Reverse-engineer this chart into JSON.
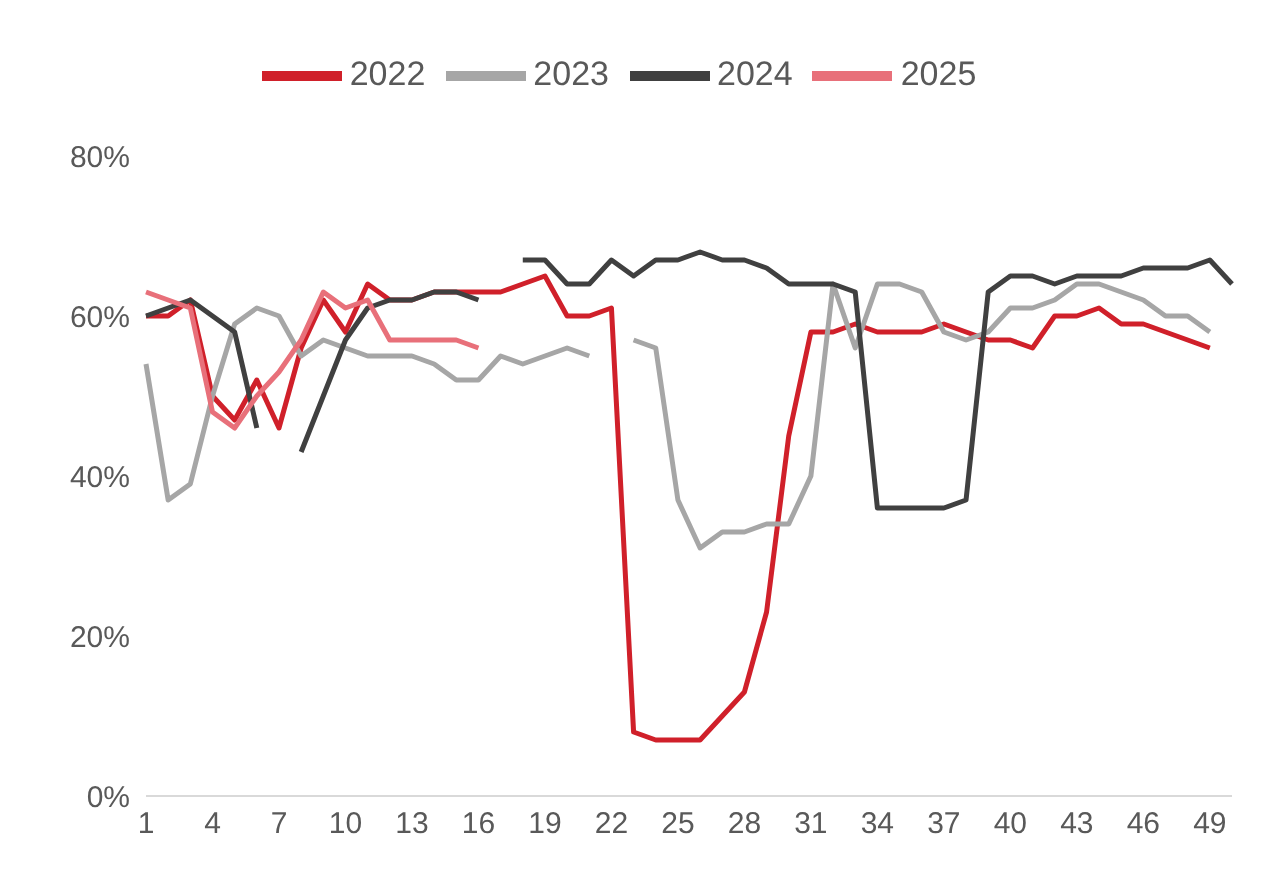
{
  "chart_data": {
    "type": "line",
    "categories": [
      "1",
      null,
      null,
      "4",
      null,
      null,
      "7",
      null,
      null,
      "10",
      null,
      null,
      "13",
      null,
      null,
      "16",
      null,
      null,
      "19",
      null,
      null,
      "22",
      null,
      null,
      "25",
      null,
      null,
      "28",
      null,
      null,
      "31",
      null,
      null,
      "34",
      null,
      null,
      "37",
      null,
      null,
      "40",
      null,
      null,
      "43",
      null,
      null,
      "46",
      null,
      null,
      "49",
      null
    ],
    "ylim": [
      0,
      80
    ],
    "yticks": [
      {
        "value": 0,
        "label": "0%"
      },
      {
        "value": 20,
        "label": "20%"
      },
      {
        "value": 40,
        "label": "40%"
      },
      {
        "value": 60,
        "label": "60%"
      },
      {
        "value": 80,
        "label": "80%"
      }
    ],
    "grid": false,
    "legend": "top",
    "marker": "none",
    "line_style": "solid",
    "series": [
      {
        "name": "2022",
        "color": "#d0202a",
        "values": [
          60,
          60,
          62,
          50,
          47,
          52,
          46,
          56,
          62,
          58,
          64,
          62,
          62,
          63,
          63,
          63,
          63,
          64,
          65,
          60,
          60,
          61,
          8,
          7,
          7,
          7,
          10,
          13,
          23,
          45,
          58,
          58,
          59,
          58,
          58,
          58,
          59,
          58,
          57,
          57,
          56,
          60,
          60,
          61,
          59,
          59,
          58,
          57,
          56,
          null
        ]
      },
      {
        "name": "2023",
        "color": "#a6a6a6",
        "values": [
          54,
          37,
          39,
          50,
          59,
          61,
          60,
          55,
          57,
          56,
          55,
          55,
          55,
          54,
          52,
          52,
          55,
          54,
          55,
          56,
          55,
          null,
          57,
          56,
          37,
          31,
          33,
          33,
          34,
          34,
          40,
          64,
          56,
          64,
          64,
          63,
          58,
          57,
          58,
          61,
          61,
          62,
          64,
          64,
          63,
          62,
          60,
          60,
          58,
          null
        ]
      },
      {
        "name": "2024",
        "color": "#404040",
        "values": [
          60,
          61,
          62,
          60,
          58,
          46,
          null,
          43,
          50,
          57,
          61,
          62,
          62,
          63,
          63,
          62,
          null,
          67,
          67,
          64,
          64,
          67,
          65,
          67,
          67,
          68,
          67,
          67,
          66,
          64,
          64,
          64,
          63,
          36,
          36,
          36,
          36,
          37,
          63,
          65,
          65,
          64,
          65,
          65,
          65,
          66,
          66,
          66,
          67,
          64
        ]
      },
      {
        "name": "2025",
        "color": "#e8707a",
        "values": [
          63,
          62,
          61,
          48,
          46,
          50,
          53,
          57,
          63,
          61,
          62,
          57,
          57,
          57,
          57,
          56,
          null,
          null,
          null,
          null,
          null,
          null,
          null,
          null,
          null,
          null,
          null,
          null,
          null,
          null,
          null,
          null,
          null,
          null,
          null,
          null,
          null,
          null,
          null,
          null,
          null,
          null,
          null,
          null,
          null,
          null,
          null,
          null,
          null,
          null
        ]
      }
    ]
  }
}
